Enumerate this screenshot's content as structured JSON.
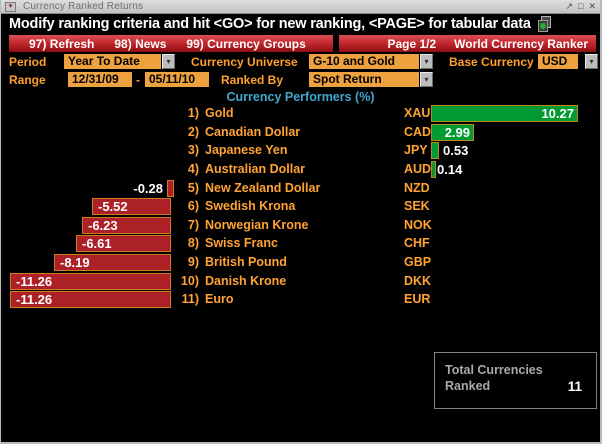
{
  "window": {
    "title": "Currency Ranked Returns",
    "controls": [
      "↗",
      "□",
      "✕"
    ]
  },
  "message": "Modify ranking criteria and hit <GO> for new ranking, <PAGE> for tabular data",
  "menu": {
    "items": [
      {
        "num": "97)",
        "label": "Refresh"
      },
      {
        "num": "98)",
        "label": "News"
      },
      {
        "num": "99)",
        "label": "Currency Groups"
      }
    ],
    "page_indicator": "Page 1/2",
    "app_title": "World Currency Ranker"
  },
  "criteria": {
    "period_label": "Period",
    "period_value": "Year To Date",
    "universe_label": "Currency Universe",
    "universe_value": "G-10 and Gold",
    "base_label": "Base Currency",
    "base_value": "USD",
    "range_label": "Range",
    "range_from": "12/31/09",
    "range_sep": "-",
    "range_to": "05/11/10",
    "ranked_by_label": "Ranked By",
    "ranked_by_value": "Spot Return"
  },
  "section_title": "Currency Performers (%)",
  "chart_data": {
    "type": "bar",
    "orientation": "horizontal",
    "title": "Currency Performers (%)",
    "categories": [
      "Gold",
      "Canadian Dollar",
      "Japanese Yen",
      "Australian Dollar",
      "New Zealand Dollar",
      "Swedish Krona",
      "Norwegian Krone",
      "Swiss Franc",
      "British Pound",
      "Danish Krone",
      "Euro"
    ],
    "tickers": [
      "XAU",
      "CAD",
      "JPY",
      "AUD",
      "NZD",
      "SEK",
      "NOK",
      "CHF",
      "GBP",
      "DKK",
      "EUR"
    ],
    "values": [
      10.27,
      2.99,
      0.53,
      0.14,
      -0.28,
      -5.52,
      -6.23,
      -6.61,
      -8.19,
      -11.26,
      -11.26
    ],
    "xlim": [
      -11.26,
      10.27
    ],
    "grid": false,
    "legend": "none",
    "positive_color": "#019a33",
    "negative_color": "#ac2028",
    "bar_border_positive": "#b98a1e",
    "bar_border_negative": "#cf7b22"
  },
  "summary": {
    "label_line1": "Total Currencies",
    "label_line2": "Ranked",
    "value": "11"
  },
  "icons": {
    "dropdown": "▾",
    "window_menu": "▾"
  },
  "colors": {
    "amber_text": "#ffa335",
    "field_bg": "#eda13f",
    "menu_red": "#c42a30",
    "header_blue": "#41a7cb",
    "bar_value_text": "#ffffff"
  }
}
